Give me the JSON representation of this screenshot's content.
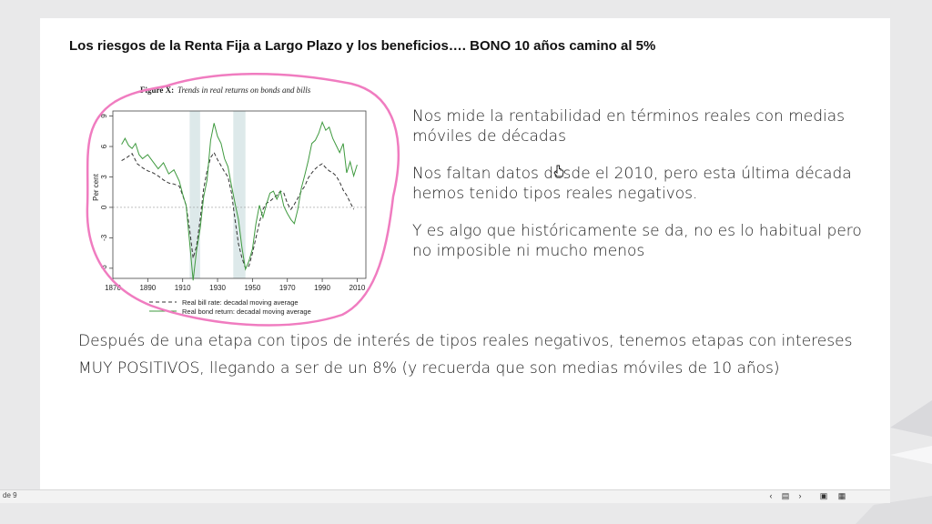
{
  "slide": {
    "title": "Los riesgos de la Renta Fija a Largo Plazo y los beneficios…. BONO 10 años camino al 5%",
    "paragraphs": [
      "Nos mide la rentabilidad en términos reales con medias móviles de décadas",
      "Nos faltan datos desde el 2010, pero esta última década hemos tenido tipos reales negativos.",
      "Y es algo que históricamente se da, no es lo habitual pero no imposible ni mucho menos",
      "Después de una etapa con tipos de interés de tipos reales negativos, tenemos etapas con intereses MUY POSITIVOS, llegando a ser de un 8% (y recuerda que son medias móviles de 10 años)"
    ],
    "annotation_color": "#f07cc0"
  },
  "chart_data": {
    "type": "line",
    "title_prefix": "Figure X:",
    "title": "Trends in real returns on bonds and bills",
    "ylabel": "Per cent",
    "xlim": [
      1870,
      2015
    ],
    "ylim": [
      -7,
      9.5
    ],
    "xticks": [
      1870,
      1890,
      1910,
      1930,
      1950,
      1970,
      1990,
      2010
    ],
    "yticks": [
      -6,
      -3,
      0,
      3,
      6,
      9
    ],
    "shaded_periods": [
      [
        1914,
        1920
      ],
      [
        1939,
        1946
      ]
    ],
    "series": [
      {
        "name": "Real bill rate: decadal moving average",
        "style": "dashed",
        "color": "#333333",
        "x": [
          1875,
          1878,
          1881,
          1884,
          1887,
          1890,
          1893,
          1896,
          1899,
          1902,
          1905,
          1908,
          1910,
          1912,
          1914,
          1916,
          1918,
          1920,
          1922,
          1924,
          1926,
          1928,
          1930,
          1932,
          1934,
          1936,
          1938,
          1940,
          1942,
          1944,
          1946,
          1948,
          1950,
          1952,
          1954,
          1956,
          1958,
          1960,
          1962,
          1964,
          1966,
          1968,
          1970,
          1972,
          1974,
          1976,
          1978,
          1980,
          1982,
          1984,
          1986,
          1988,
          1990,
          1992,
          1994,
          1996,
          1998,
          2000,
          2002,
          2004,
          2006,
          2008
        ],
        "y": [
          4.6,
          4.9,
          5.3,
          4.3,
          3.9,
          3.6,
          3.4,
          3.1,
          2.7,
          2.4,
          2.3,
          2.1,
          1.2,
          0.2,
          -2.2,
          -5.0,
          -3.8,
          -1.2,
          1.8,
          3.6,
          4.9,
          5.4,
          4.7,
          4.1,
          3.5,
          3.0,
          1.4,
          -1.2,
          -3.6,
          -5.0,
          -6.0,
          -5.8,
          -4.5,
          -3.0,
          -1.5,
          -0.2,
          0.4,
          0.6,
          0.9,
          1.2,
          1.6,
          1.4,
          0.4,
          -0.2,
          0.3,
          0.9,
          1.6,
          2.1,
          2.9,
          3.4,
          3.8,
          4.1,
          4.3,
          3.9,
          3.6,
          3.4,
          3.1,
          2.5,
          1.7,
          1.2,
          0.5,
          -0.2
        ]
      },
      {
        "name": "Real bond return: decadal moving average",
        "style": "solid",
        "color": "#3f9a3f",
        "x": [
          1875,
          1877,
          1879,
          1881,
          1883,
          1885,
          1887,
          1890,
          1893,
          1896,
          1899,
          1902,
          1905,
          1908,
          1910,
          1912,
          1914,
          1916,
          1918,
          1920,
          1922,
          1924,
          1926,
          1928,
          1930,
          1932,
          1934,
          1936,
          1938,
          1940,
          1942,
          1944,
          1946,
          1948,
          1950,
          1952,
          1954,
          1956,
          1958,
          1960,
          1962,
          1964,
          1966,
          1968,
          1970,
          1972,
          1974,
          1976,
          1978,
          1980,
          1982,
          1984,
          1986,
          1988,
          1990,
          1992,
          1994,
          1996,
          1998,
          2000,
          2002,
          2004,
          2006,
          2008,
          2010
        ],
        "y": [
          6.2,
          6.8,
          6.1,
          5.8,
          6.3,
          5.2,
          4.8,
          5.2,
          4.5,
          3.8,
          4.4,
          3.3,
          3.7,
          2.6,
          1.3,
          0.2,
          -3.5,
          -7.2,
          -4.2,
          -2.1,
          1.0,
          2.7,
          6.6,
          8.3,
          7.0,
          6.3,
          4.8,
          4.0,
          2.1,
          0.4,
          -1.2,
          -4.0,
          -6.1,
          -5.3,
          -4.1,
          -1.6,
          0.2,
          -1.0,
          0.3,
          1.4,
          1.6,
          0.8,
          1.6,
          0.1,
          -0.6,
          -1.2,
          -1.6,
          -0.2,
          1.9,
          3.2,
          4.6,
          6.3,
          6.6,
          7.3,
          8.4,
          7.6,
          7.9,
          6.8,
          6.1,
          5.4,
          6.3,
          3.4,
          4.5,
          3.1,
          4.2
        ]
      }
    ],
    "legend": "bottom"
  },
  "toolbar": {
    "slide_number": "de 9",
    "icons": [
      "chevron-left-icon",
      "book-icon",
      "chevron-right-icon",
      "monitor-icon",
      "grid-icon"
    ]
  }
}
